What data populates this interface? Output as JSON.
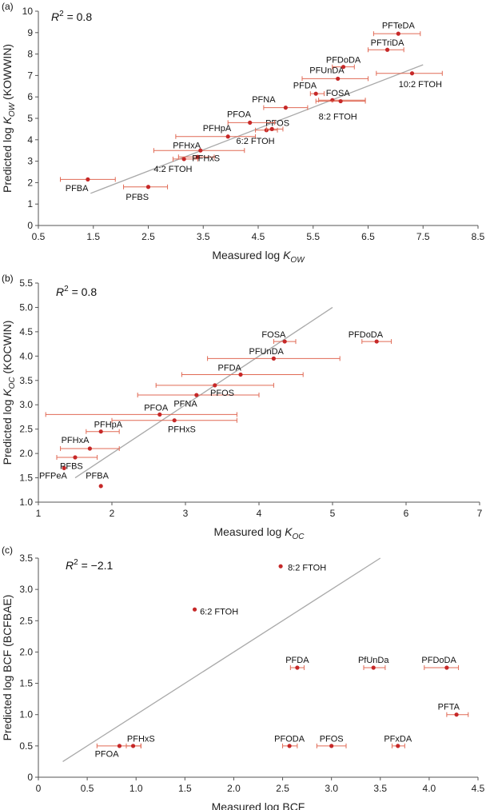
{
  "chart_data": [
    {
      "panel": "(a)",
      "type": "scatter",
      "r2": "= 0.8",
      "xlabel": "Measured log",
      "xlabel_sub": "OW",
      "ylabel": "Predicted log",
      "ylabel_sub": "OW",
      "ylabel_suffix": " (KOWWIN)",
      "xlim": [
        0.5,
        8.5
      ],
      "ylim": [
        0,
        10
      ],
      "xticks": [
        "0.5",
        "1.5",
        "2.5",
        "3.5",
        "4.5",
        "5.5",
        "6.5",
        "7.5",
        "8.5"
      ],
      "yticks": [
        "0",
        "1",
        "2",
        "3",
        "4",
        "5",
        "6",
        "7",
        "8",
        "9",
        "10"
      ],
      "fit_line": [
        [
          1.45,
          1.5
        ],
        [
          7.5,
          7.5
        ]
      ],
      "points": [
        {
          "label": "PFBA",
          "x": 1.4,
          "y": 2.15,
          "xerr": [
            0.9,
            1.9
          ],
          "lx": 1.2,
          "ly": 1.75
        },
        {
          "label": "PFBS",
          "x": 2.5,
          "y": 1.8,
          "xerr": [
            2.05,
            2.85
          ],
          "lx": 2.3,
          "ly": 1.35
        },
        {
          "label": "4:2 FTOH",
          "x": 3.15,
          "y": 3.1,
          "xerr": [
            2.95,
            3.4
          ],
          "lx": 2.95,
          "ly": 2.65
        },
        {
          "label": "PFHxS",
          "x": 3.4,
          "y": 3.2,
          "xerr": [
            3.05,
            3.7
          ],
          "lx": 3.55,
          "ly": 3.15
        },
        {
          "label": "PFHxA",
          "x": 3.45,
          "y": 3.5,
          "xerr": [
            2.6,
            4.25
          ],
          "lx": 3.2,
          "ly": 3.75
        },
        {
          "label": "PFHpA",
          "x": 3.95,
          "y": 4.15,
          "xerr": [
            3.0,
            4.45
          ],
          "lx": 3.75,
          "ly": 4.55
        },
        {
          "label": "6:2 FTOH",
          "x": 4.65,
          "y": 4.45,
          "xerr": [
            4.45,
            4.85
          ],
          "lx": 4.45,
          "ly": 3.95
        },
        {
          "label": "PFOS",
          "x": 4.75,
          "y": 4.5,
          "xerr": [
            4.65,
            4.95
          ],
          "lx": 4.85,
          "ly": 4.8
        },
        {
          "label": "PFOA",
          "x": 4.35,
          "y": 4.8,
          "xerr": [
            3.95,
            4.8
          ],
          "lx": 4.15,
          "ly": 5.2
        },
        {
          "label": "PFNA",
          "x": 5.0,
          "y": 5.5,
          "xerr": [
            4.6,
            5.4
          ],
          "lx": 4.6,
          "ly": 5.9
        },
        {
          "label": "PFDA",
          "x": 5.55,
          "y": 6.15,
          "xerr": [
            5.45,
            5.7
          ],
          "lx": 5.35,
          "ly": 6.55
        },
        {
          "label": "FOSA",
          "x": 5.85,
          "y": 5.85,
          "xerr": [
            5.6,
            6.45
          ],
          "lx": 5.95,
          "ly": 6.2
        },
        {
          "label": "8:2 FTOH",
          "x": 6.0,
          "y": 5.8,
          "xerr": [
            5.55,
            6.45
          ],
          "lx": 5.95,
          "ly": 5.1
        },
        {
          "label": "PFUnDA",
          "x": 5.95,
          "y": 6.85,
          "xerr": [
            5.3,
            6.5
          ],
          "lx": 5.75,
          "ly": 7.25
        },
        {
          "label": "PFDoDA",
          "x": 6.05,
          "y": 7.4,
          "xerr": [
            5.85,
            6.25
          ],
          "lx": 6.05,
          "ly": 7.75
        },
        {
          "label": "10:2 FTOH",
          "x": 7.3,
          "y": 7.1,
          "xerr": [
            6.65,
            7.85
          ],
          "lx": 7.45,
          "ly": 6.6
        },
        {
          "label": "PFTriDA",
          "x": 6.85,
          "y": 8.2,
          "xerr": [
            6.5,
            7.15
          ],
          "lx": 6.85,
          "ly": 8.55
        },
        {
          "label": "PFTeDA",
          "x": 7.05,
          "y": 8.95,
          "xerr": [
            6.6,
            7.45
          ],
          "lx": 7.05,
          "ly": 9.35
        }
      ]
    },
    {
      "panel": "(b)",
      "type": "scatter",
      "r2": "= 0.8",
      "xlabel": "Measured log",
      "xlabel_sub": "OC",
      "ylabel": "Predicted log",
      "ylabel_sub": "OC",
      "ylabel_suffix": " (KOCWIN)",
      "xlim": [
        1,
        7
      ],
      "ylim": [
        1.0,
        5.5
      ],
      "xticks": [
        "1",
        "2",
        "3",
        "4",
        "5",
        "6",
        "7"
      ],
      "yticks": [
        "1.0",
        "1.5",
        "2.0",
        "2.5",
        "3.0",
        "3.5",
        "4.0",
        "4.5",
        "5.0",
        "5.5"
      ],
      "fit_line": [
        [
          1.5,
          1.5
        ],
        [
          5.0,
          5.0
        ]
      ],
      "points": [
        {
          "label": "PFPeA",
          "x": 1.35,
          "y": 1.7,
          "xerr": [
            1.35,
            1.35
          ],
          "lx": 1.2,
          "ly": 1.55
        },
        {
          "label": "PFBS",
          "x": 1.5,
          "y": 1.92,
          "xerr": [
            1.25,
            1.8
          ],
          "lx": 1.45,
          "ly": 1.75
        },
        {
          "label": "PFBA",
          "x": 1.85,
          "y": 1.33,
          "xerr": [
            1.85,
            1.85
          ],
          "lx": 1.8,
          "ly": 1.55
        },
        {
          "label": "PFHxA",
          "x": 1.7,
          "y": 2.1,
          "xerr": [
            1.3,
            2.1
          ],
          "lx": 1.5,
          "ly": 2.28
        },
        {
          "label": "PFHpA",
          "x": 1.85,
          "y": 2.45,
          "xerr": [
            1.65,
            2.1
          ],
          "lx": 1.95,
          "ly": 2.6
        },
        {
          "label": "PFOA",
          "x": 2.65,
          "y": 2.8,
          "xerr": [
            1.1,
            3.7
          ],
          "lx": 2.6,
          "ly": 2.95
        },
        {
          "label": "PFHxS",
          "x": 2.85,
          "y": 2.68,
          "xerr": [
            2.0,
            3.7
          ],
          "lx": 2.95,
          "ly": 2.5
        },
        {
          "label": "PFNA",
          "x": 3.15,
          "y": 3.2,
          "xerr": [
            2.35,
            4.0
          ],
          "lx": 3.0,
          "ly": 3.03
        },
        {
          "label": "PFOS",
          "x": 3.4,
          "y": 3.4,
          "xerr": [
            2.6,
            4.2
          ],
          "lx": 3.5,
          "ly": 3.25
        },
        {
          "label": "PFDA",
          "x": 3.75,
          "y": 3.62,
          "xerr": [
            2.95,
            4.6
          ],
          "lx": 3.6,
          "ly": 3.77
        },
        {
          "label": "PFUnDA",
          "x": 4.2,
          "y": 3.95,
          "xerr": [
            3.3,
            5.1
          ],
          "lx": 4.1,
          "ly": 4.1
        },
        {
          "label": "FOSA",
          "x": 4.35,
          "y": 4.3,
          "xerr": [
            4.2,
            4.5
          ],
          "lx": 4.2,
          "ly": 4.45
        },
        {
          "label": "PFDoDA",
          "x": 5.6,
          "y": 4.3,
          "xerr": [
            5.4,
            5.8
          ],
          "lx": 5.45,
          "ly": 4.45
        }
      ]
    },
    {
      "panel": "(c)",
      "type": "scatter",
      "r2": "= −2.1",
      "xlabel": "Measured log BCF",
      "xlabel_sub": "",
      "ylabel": "Predicted log BCF (BCFBAE)",
      "ylabel_sub": "",
      "ylabel_suffix": "",
      "xlim": [
        0,
        4.5
      ],
      "ylim": [
        0,
        3.5
      ],
      "xticks": [
        "0",
        "0.5",
        "1.0",
        "1.5",
        "2.0",
        "2.5",
        "3.0",
        "3.5",
        "4.0",
        "4.5"
      ],
      "yticks": [
        "0",
        "0.5",
        "1.0",
        "1.5",
        "2.0",
        "2.5",
        "3.0",
        "3.5"
      ],
      "fit_line": [
        [
          0.25,
          0.25
        ],
        [
          3.5,
          3.5
        ]
      ],
      "points": [
        {
          "label": "PFOA",
          "x": 0.83,
          "y": 0.5,
          "xerr": [
            0.6,
            1.05
          ],
          "lx": 0.7,
          "ly": 0.38
        },
        {
          "label": "PFHxS",
          "x": 0.97,
          "y": 0.5,
          "xerr": [
            0.9,
            1.05
          ],
          "lx": 1.05,
          "ly": 0.62
        },
        {
          "label": "6:2 FTOH",
          "x": 1.6,
          "y": 2.68,
          "xerr": [
            1.6,
            1.6
          ],
          "lx": 1.85,
          "ly": 2.65
        },
        {
          "label": "8:2 FTOH",
          "x": 2.48,
          "y": 3.37,
          "xerr": [
            2.48,
            2.48
          ],
          "lx": 2.75,
          "ly": 3.35
        },
        {
          "label": "PFODA",
          "x": 2.57,
          "y": 0.5,
          "xerr": [
            2.5,
            2.65
          ],
          "lx": 2.57,
          "ly": 0.62
        },
        {
          "label": "PFOS",
          "x": 3.0,
          "y": 0.5,
          "xerr": [
            2.85,
            3.15
          ],
          "lx": 3.0,
          "ly": 0.62
        },
        {
          "label": "PFDA",
          "x": 2.65,
          "y": 1.75,
          "xerr": [
            2.58,
            2.72
          ],
          "lx": 2.65,
          "ly": 1.88
        },
        {
          "label": "PfUnDa",
          "x": 3.43,
          "y": 1.75,
          "xerr": [
            3.33,
            3.55
          ],
          "lx": 3.43,
          "ly": 1.88
        },
        {
          "label": "PFxDA",
          "x": 3.68,
          "y": 0.5,
          "xerr": [
            3.62,
            3.75
          ],
          "lx": 3.68,
          "ly": 0.62
        },
        {
          "label": "PFDoDA",
          "x": 4.18,
          "y": 1.75,
          "xerr": [
            3.95,
            4.3
          ],
          "lx": 4.1,
          "ly": 1.88
        },
        {
          "label": "PFTA",
          "x": 4.28,
          "y": 1.0,
          "xerr": [
            4.18,
            4.4
          ],
          "lx": 4.2,
          "ly": 1.13
        }
      ]
    }
  ]
}
